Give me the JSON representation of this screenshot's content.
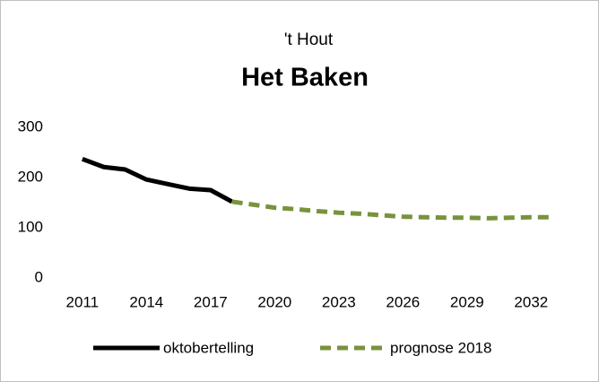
{
  "chart_data": {
    "type": "line",
    "title": "Het Baken",
    "subtitle": "'t Hout",
    "series": [
      {
        "name": "oktobertelling",
        "color": "#000000",
        "dashed": false,
        "x": [
          2011,
          2012,
          2013,
          2014,
          2015,
          2016,
          2017,
          2018
        ],
        "values": [
          237,
          221,
          216,
          196,
          187,
          178,
          175,
          152
        ]
      },
      {
        "name": "prognose 2018",
        "color": "#77933c",
        "dashed": true,
        "x": [
          2018,
          2019,
          2020,
          2021,
          2022,
          2023,
          2024,
          2025,
          2026,
          2027,
          2028,
          2029,
          2030,
          2031,
          2032,
          2033
        ],
        "values": [
          152,
          146,
          140,
          137,
          133,
          130,
          128,
          125,
          122,
          121,
          120,
          120,
          119,
          120,
          121,
          121
        ]
      }
    ],
    "xlim": [
      2010,
      2034
    ],
    "xticks": [
      2011,
      2014,
      2017,
      2020,
      2023,
      2026,
      2029,
      2032
    ],
    "ylim": [
      0,
      300
    ],
    "yticks": [
      0,
      100,
      200,
      300
    ],
    "grid": false,
    "legend": "bottom"
  }
}
